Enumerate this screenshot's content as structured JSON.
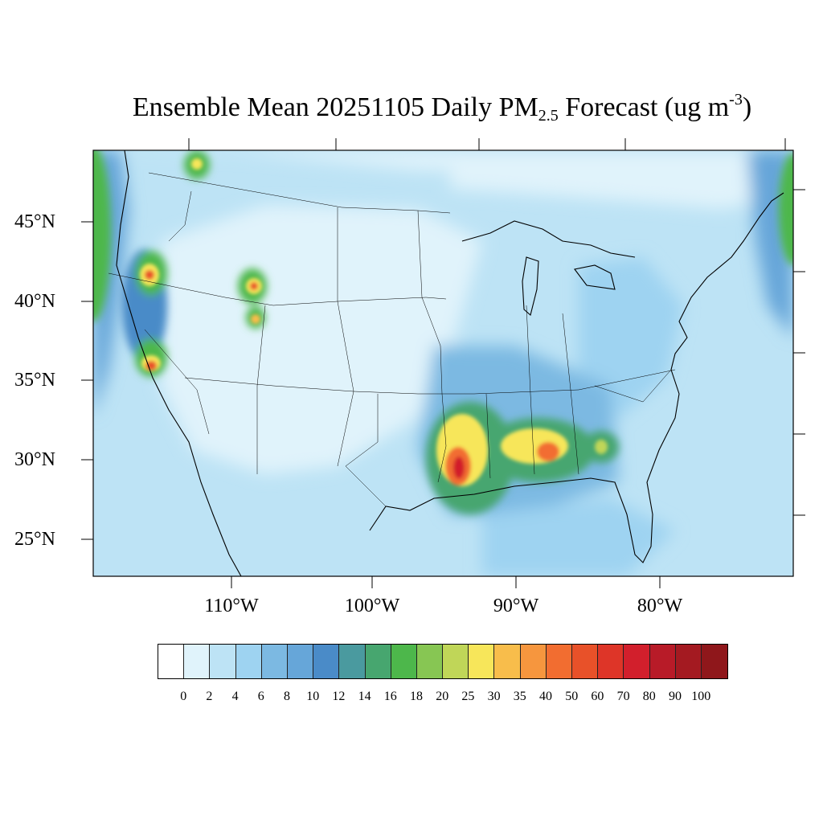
{
  "title": {
    "prefix": "Ensemble Mean 20251105 Daily PM",
    "sub": "2.5",
    "middle": " Forecast (ug m",
    "sup": "-3",
    "suffix": ")"
  },
  "lat_labels": [
    "45°N",
    "40°N",
    "35°N",
    "30°N",
    "25°N"
  ],
  "lon_labels": [
    "110°W",
    "100°W",
    "90°W",
    "80°W"
  ],
  "colorbar": {
    "levels": [
      "0",
      "2",
      "4",
      "6",
      "8",
      "10",
      "12",
      "14",
      "16",
      "18",
      "20",
      "25",
      "30",
      "35",
      "40",
      "50",
      "60",
      "70",
      "80",
      "90",
      "100"
    ],
    "colors": [
      "#ffffff",
      "#e0f3fb",
      "#bde3f5",
      "#9ed3f1",
      "#7cb9e2",
      "#66a6d9",
      "#4a8bc8",
      "#4a9a9f",
      "#47a66f",
      "#4db74b",
      "#87c653",
      "#c0d658",
      "#f7e65a",
      "#f8bd4b",
      "#f6963e",
      "#f26d30",
      "#e85129",
      "#de3528",
      "#d21f2c",
      "#b81b28",
      "#a41a21",
      "#8f171b"
    ]
  },
  "map": {
    "projection": "lambert-conformal",
    "lat_range": [
      22,
      50
    ],
    "lon_range": [
      -125,
      -65
    ],
    "background_color": "#bde3f5"
  },
  "chart_data": {
    "type": "heatmap",
    "title": "Ensemble Mean 20251105 Daily PM2.5 Forecast (ug m-3)",
    "units": "ug m-3",
    "x_ticks": [
      "110°W",
      "100°W",
      "90°W",
      "80°W"
    ],
    "y_ticks": [
      "45°N",
      "40°N",
      "35°N",
      "30°N",
      "25°N"
    ],
    "hotspots": [
      {
        "lat": 30.0,
        "lon": -93.8,
        "value": 70
      },
      {
        "lat": 31.5,
        "lon": -88.5,
        "value": 40
      },
      {
        "lat": 31.0,
        "lon": -83.5,
        "value": 20
      },
      {
        "lat": 41.6,
        "lon": -121.5,
        "value": 40
      },
      {
        "lat": 36.2,
        "lon": -119.5,
        "value": 40
      },
      {
        "lat": 40.6,
        "lon": -109.5,
        "value": 40
      },
      {
        "lat": 38.9,
        "lon": -109.8,
        "value": 35
      },
      {
        "lat": 48.5,
        "lon": -115.0,
        "value": 30
      }
    ]
  }
}
